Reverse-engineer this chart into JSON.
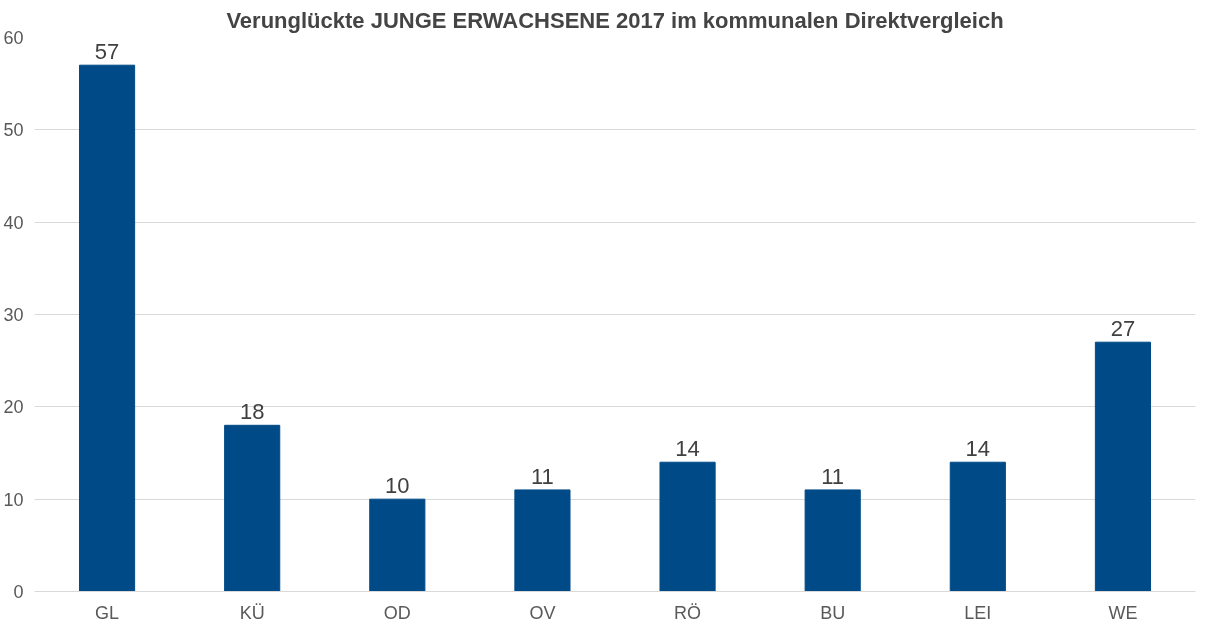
{
  "chart_data": {
    "type": "bar",
    "title": "Verunglückte JUNGE ERWACHSENE 2017 im kommunalen Direktvergleich",
    "categories": [
      "GL",
      "KÜ",
      "OD",
      "OV",
      "RÖ",
      "BU",
      "LEI",
      "WE"
    ],
    "values": [
      57,
      18,
      10,
      11,
      14,
      11,
      14,
      27
    ],
    "color": "#004b87",
    "ylim": [
      0,
      60
    ],
    "yticks": [
      0,
      10,
      20,
      30,
      40,
      50,
      60
    ],
    "grid": "y",
    "data_labels": true
  }
}
